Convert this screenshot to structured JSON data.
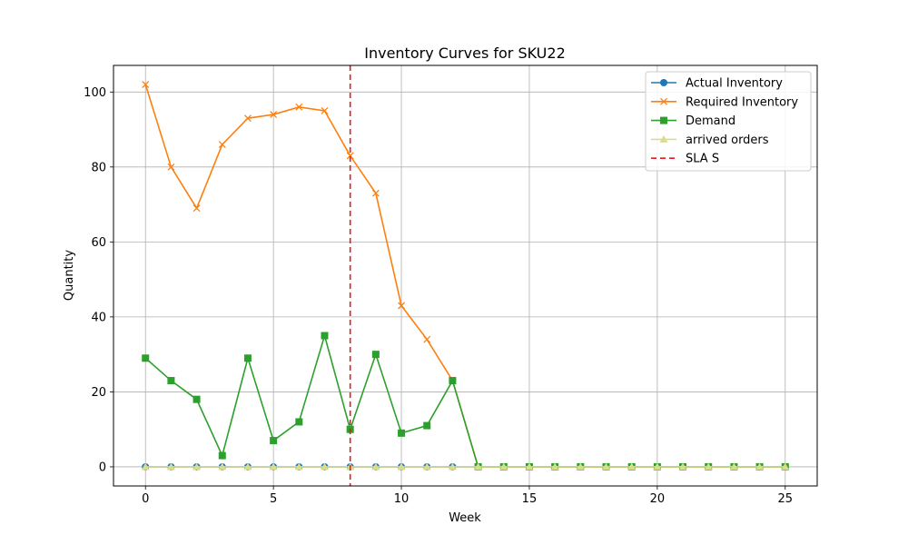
{
  "chart_data": {
    "type": "line",
    "title": "Inventory Curves for SKU22",
    "xlabel": "Week",
    "ylabel": "Quantity",
    "xlim": [
      -1.25,
      26.25
    ],
    "ylim": [
      -5.1,
      107.1
    ],
    "xticks": [
      0,
      5,
      10,
      15,
      20,
      25
    ],
    "yticks": [
      0,
      20,
      40,
      60,
      80,
      100
    ],
    "grid": true,
    "legend_position": "top-right",
    "x": [
      0,
      1,
      2,
      3,
      4,
      5,
      6,
      7,
      8,
      9,
      10,
      11,
      12,
      13,
      14,
      15,
      16,
      17,
      18,
      19,
      20,
      21,
      22,
      23,
      24,
      25
    ],
    "series": [
      {
        "name": "Actual Inventory",
        "marker": "circle",
        "color": "#1f77b4",
        "values": [
          0,
          0,
          0,
          0,
          0,
          0,
          0,
          0,
          0,
          0,
          0,
          0,
          0,
          0,
          0,
          0,
          0,
          0,
          0,
          0,
          0,
          0,
          0,
          0,
          0,
          0
        ]
      },
      {
        "name": "Required Inventory",
        "marker": "x",
        "color": "#ff7f0e",
        "values": [
          102,
          80,
          69,
          86,
          93,
          94,
          96,
          95,
          83,
          73,
          43,
          34,
          23,
          0,
          0,
          0,
          0,
          0,
          0,
          0,
          0,
          0,
          0,
          0,
          0,
          0
        ]
      },
      {
        "name": "Demand",
        "marker": "square",
        "color": "#2ca02c",
        "values": [
          29,
          23,
          18,
          3,
          29,
          7,
          12,
          35,
          10,
          30,
          9,
          11,
          23,
          0,
          0,
          0,
          0,
          0,
          0,
          0,
          0,
          0,
          0,
          0,
          0,
          0
        ]
      },
      {
        "name": "arrived orders",
        "marker": "triangle",
        "color": "#dbdb8d",
        "values": [
          0,
          0,
          0,
          0,
          0,
          0,
          0,
          0,
          0,
          0,
          0,
          0,
          0,
          0,
          0,
          0,
          0,
          0,
          0,
          0,
          0,
          0,
          0,
          0,
          0,
          0
        ]
      }
    ],
    "vline": {
      "name": "SLA S",
      "x": 8,
      "color": "#e41a1c",
      "style": "dashed"
    }
  }
}
